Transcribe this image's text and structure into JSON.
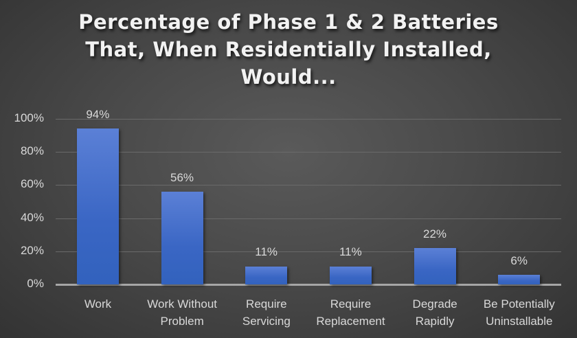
{
  "chart_data": {
    "type": "bar",
    "title": "Percentage of Phase 1 & 2 Batteries That, When Residentially Installed, Would...",
    "title_lines": [
      "Percentage of Phase 1 & 2 Batteries",
      "That, When Residentially Installed,",
      "Would..."
    ],
    "categories": [
      "Work",
      "Work Without Problem",
      "Require Servicing",
      "Require Replacement",
      "Degrade Rapidly",
      "Be Potentially Uninstallable"
    ],
    "category_lines": [
      [
        "Work"
      ],
      [
        "Work Without",
        "Problem"
      ],
      [
        "Require",
        "Servicing"
      ],
      [
        "Require",
        "Replacement"
      ],
      [
        "Degrade",
        "Rapidly"
      ],
      [
        "Be Potentially",
        "Uninstallable"
      ]
    ],
    "values": [
      94,
      56,
      11,
      11,
      22,
      6
    ],
    "value_labels": [
      "94%",
      "56%",
      "11%",
      "11%",
      "22%",
      "6%"
    ],
    "xlabel": "",
    "ylabel": "",
    "ylim": [
      0,
      100
    ],
    "yticks": [
      "0%",
      "20%",
      "40%",
      "60%",
      "80%",
      "100%"
    ],
    "grid": true,
    "legend": "none",
    "bar_color": "#4472c4"
  }
}
